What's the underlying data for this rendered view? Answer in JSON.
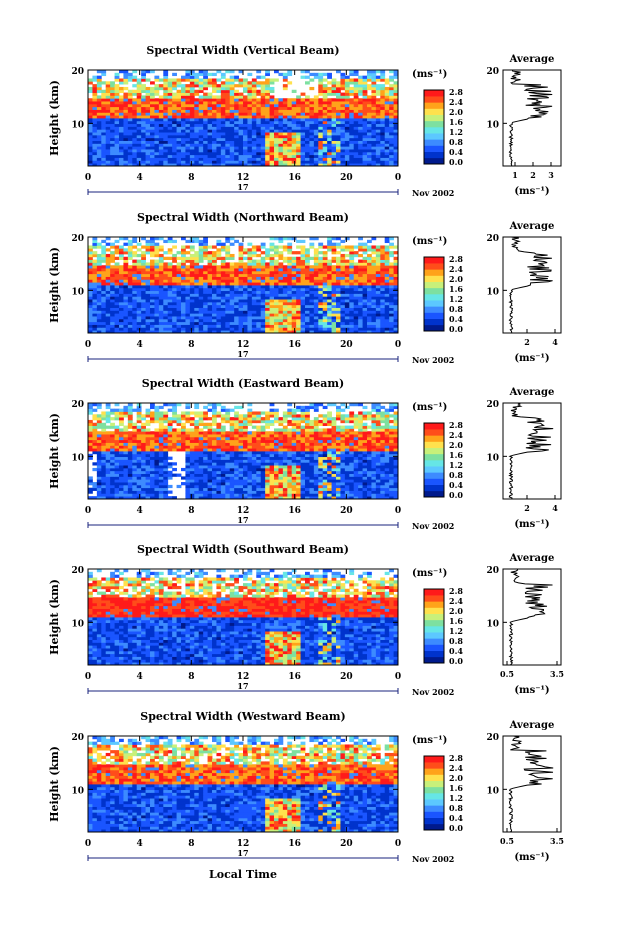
{
  "figure": {
    "xlabel": "Local Time",
    "ylabel": "Height (km)",
    "date_label": "Nov 2002",
    "day_label": "17",
    "x_ticks": [
      "0",
      "4",
      "8",
      "12",
      "16",
      "20",
      "0"
    ],
    "y_ticks": [
      "10",
      "20"
    ],
    "colorbar_unit": "(ms⁻¹)",
    "colorbar_ticks": [
      "0.0",
      "0.4",
      "0.8",
      "1.2",
      "1.6",
      "2.0",
      "2.4",
      "2.8"
    ],
    "avg_title": "Average",
    "avg_unit": "(ms⁻¹)",
    "avg_y_ticks": [
      "10",
      "20"
    ],
    "colors": {
      "ramp": [
        "#001a8c",
        "#0033cc",
        "#1a55ff",
        "#3d8bff",
        "#5cc8ff",
        "#66e6e6",
        "#7de0a0",
        "#c8f07a",
        "#ffe14d",
        "#ffa31a",
        "#ff4d1a",
        "#ff1a1a"
      ]
    }
  },
  "panels": [
    {
      "title": "Spectral Width (Vertical Beam)",
      "avg_ticks": [
        "1",
        "2",
        "3"
      ]
    },
    {
      "title": "Spectral Width (Northward Beam)",
      "avg_ticks": [
        "2",
        "4"
      ]
    },
    {
      "title": "Spectral Width (Eastward Beam)",
      "avg_ticks": [
        "2",
        "4"
      ]
    },
    {
      "title": "Spectral Width (Southward Beam)",
      "avg_ticks": [
        "0.5",
        "3.5"
      ]
    },
    {
      "title": "Spectral Width (Westward Beam)",
      "avg_ticks": [
        "0.5",
        "3.5"
      ]
    }
  ],
  "chart_data": [
    {
      "type": "heatmap",
      "title": "Spectral Width (Vertical Beam)",
      "xlabel": "",
      "ylabel": "Height (km)",
      "x_ticks": [
        "0",
        "4",
        "8",
        "12",
        "16",
        "20",
        "0"
      ],
      "xlim": [
        0,
        24
      ],
      "ylim": [
        2,
        20
      ],
      "colorbar": {
        "label": "(ms⁻¹)",
        "min": 0.0,
        "max": 2.8
      }
    },
    {
      "type": "line",
      "title": "Average",
      "xlabel": "(ms⁻¹)",
      "xlim": [
        0.5,
        3.5
      ],
      "ylim": [
        2,
        20
      ],
      "x_ticks": [
        "1",
        "2",
        "3"
      ],
      "y_ticks": [
        "10",
        "20"
      ]
    },
    {
      "type": "heatmap",
      "title": "Spectral Width (Northward Beam)",
      "xlabel": "",
      "ylabel": "Height (km)",
      "x_ticks": [
        "0",
        "4",
        "8",
        "12",
        "16",
        "20",
        "0"
      ],
      "xlim": [
        0,
        24
      ],
      "ylim": [
        2,
        20
      ],
      "colorbar": {
        "label": "(ms⁻¹)",
        "min": 0.0,
        "max": 2.8
      }
    },
    {
      "type": "line",
      "title": "Average",
      "xlabel": "(ms⁻¹)",
      "xlim": [
        0.5,
        4.5
      ],
      "ylim": [
        2,
        20
      ],
      "x_ticks": [
        "2",
        "4"
      ],
      "y_ticks": [
        "10",
        "20"
      ]
    },
    {
      "type": "heatmap",
      "title": "Spectral Width (Eastward Beam)",
      "xlabel": "",
      "ylabel": "Height (km)",
      "x_ticks": [
        "0",
        "4",
        "8",
        "12",
        "16",
        "20",
        "0"
      ],
      "xlim": [
        0,
        24
      ],
      "ylim": [
        2,
        20
      ],
      "colorbar": {
        "label": "(ms⁻¹)",
        "min": 0.0,
        "max": 2.8
      }
    },
    {
      "type": "line",
      "title": "Average",
      "xlabel": "(ms⁻¹)",
      "xlim": [
        0.5,
        4.5
      ],
      "ylim": [
        2,
        20
      ],
      "x_ticks": [
        "2",
        "4"
      ],
      "y_ticks": [
        "10",
        "20"
      ]
    },
    {
      "type": "heatmap",
      "title": "Spectral Width (Southward Beam)",
      "xlabel": "",
      "ylabel": "Height (km)",
      "x_ticks": [
        "0",
        "4",
        "8",
        "12",
        "16",
        "20",
        "0"
      ],
      "xlim": [
        0,
        24
      ],
      "ylim": [
        2,
        20
      ],
      "colorbar": {
        "label": "(ms⁻¹)",
        "min": 0.0,
        "max": 2.8
      }
    },
    {
      "type": "line",
      "title": "Average",
      "xlabel": "(ms⁻¹)",
      "xlim": [
        0.5,
        3.5
      ],
      "ylim": [
        2,
        20
      ],
      "x_ticks": [
        "0.5",
        "3.5"
      ],
      "y_ticks": [
        "10",
        "20"
      ]
    },
    {
      "type": "heatmap",
      "title": "Spectral Width (Westward Beam)",
      "xlabel": "Local Time",
      "ylabel": "Height (km)",
      "x_ticks": [
        "0",
        "4",
        "8",
        "12",
        "16",
        "20",
        "0"
      ],
      "xlim": [
        0,
        24
      ],
      "ylim": [
        2,
        20
      ],
      "colorbar": {
        "label": "(ms⁻¹)",
        "min": 0.0,
        "max": 2.8
      }
    },
    {
      "type": "line",
      "title": "Average",
      "xlabel": "(ms⁻¹)",
      "xlim": [
        0.5,
        3.5
      ],
      "ylim": [
        2,
        20
      ],
      "x_ticks": [
        "0.5",
        "3.5"
      ],
      "y_ticks": [
        "10",
        "20"
      ]
    }
  ]
}
